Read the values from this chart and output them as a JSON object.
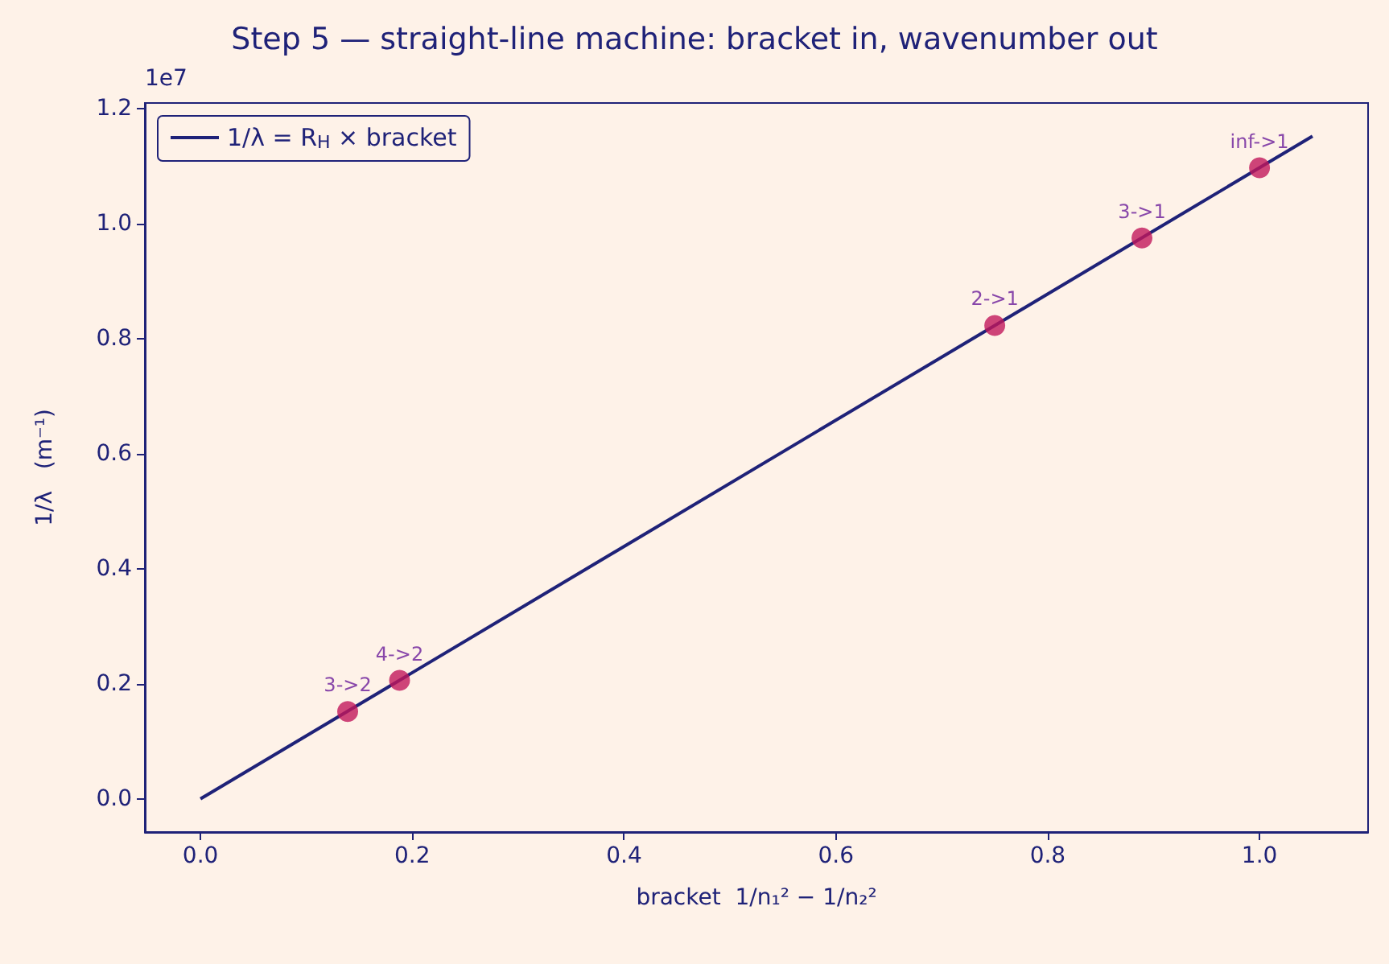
{
  "chart_data": {
    "type": "line",
    "title": "Step 5 — straight-line machine: bracket in, wavenumber out",
    "xlabel": "bracket  1/n₁² − 1/n₂²",
    "ylabel": "1/λ   (m⁻¹)",
    "annotations": [
      "1e7"
    ],
    "series": [
      {
        "name": "1/λ = R$_{H}$ × bracket",
        "color": "#1f2278",
        "marker": "none",
        "x": [
          0,
          1.05
        ],
        "values": [
          0,
          1.152
        ]
      },
      {
        "type": "scatter",
        "color": "#c2185b",
        "marker": "circle",
        "x": [
          0.139,
          0.188,
          0.75,
          0.889,
          1.0
        ],
        "values": [
          0.152,
          0.206,
          0.823,
          0.975,
          1.097
        ],
        "value_labels": [
          "3->2",
          "4->2",
          "2->1",
          "3->1",
          "inf->1"
        ]
      }
    ],
    "xlim": [
      -0.0525,
      1.1025
    ],
    "xticks": [
      {
        "value": 0,
        "label": "0.0"
      },
      {
        "value": 0.2,
        "label": "0.2"
      },
      {
        "value": 0.4,
        "label": "0.4"
      },
      {
        "value": 0.6,
        "label": "0.6"
      },
      {
        "value": 0.8,
        "label": "0.8"
      },
      {
        "value": 1.0,
        "label": "1.0"
      }
    ],
    "ylim": [
      -0.0576,
      1.2096
    ],
    "yticks": [
      {
        "value": 0,
        "label": "0.0"
      },
      0.2,
      0.4,
      0.6,
      0.8,
      {
        "value": 1.0,
        "label": "1.0"
      },
      1.2
    ],
    "grid": false,
    "legend": "top left"
  }
}
